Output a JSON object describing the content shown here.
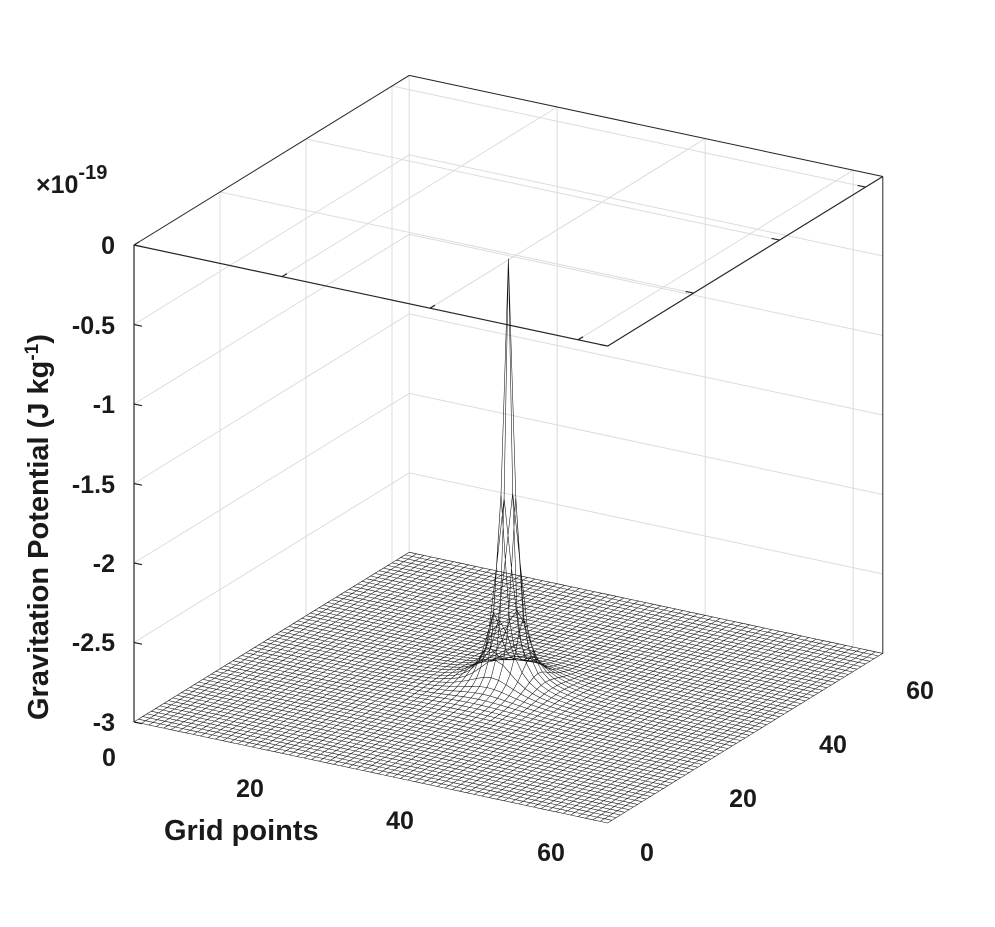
{
  "chart_data": {
    "type": "surface",
    "ylabel": "Gravitation Potential (J kg",
    "ylabel_sup": "-1",
    "ylabel_end": ")",
    "xlabel": "Grid points",
    "exponent_prefix": "×10",
    "exponent_value": "-19",
    "z_ticks": [
      "0",
      "-0.5",
      "-1",
      "-1.5",
      "-2",
      "-2.5",
      "-3"
    ],
    "z_tick_values": [
      0,
      -0.5,
      -1,
      -1.5,
      -2,
      -2.5,
      -3
    ],
    "x_ticks": [
      "0",
      "20",
      "40",
      "60"
    ],
    "x_tick_values": [
      0,
      20,
      40,
      60
    ],
    "y_ticks": [
      "0",
      "20",
      "40",
      "60"
    ],
    "y_tick_values": [
      0,
      20,
      40,
      60
    ],
    "xlim": [
      0,
      64
    ],
    "ylim": [
      0,
      64
    ],
    "zlim": [
      -3,
      0
    ],
    "grid_points": 64,
    "well_center": [
      32,
      32
    ],
    "well_min": -2.7,
    "grid": true,
    "surface_style": "black wireframe mesh on white"
  }
}
